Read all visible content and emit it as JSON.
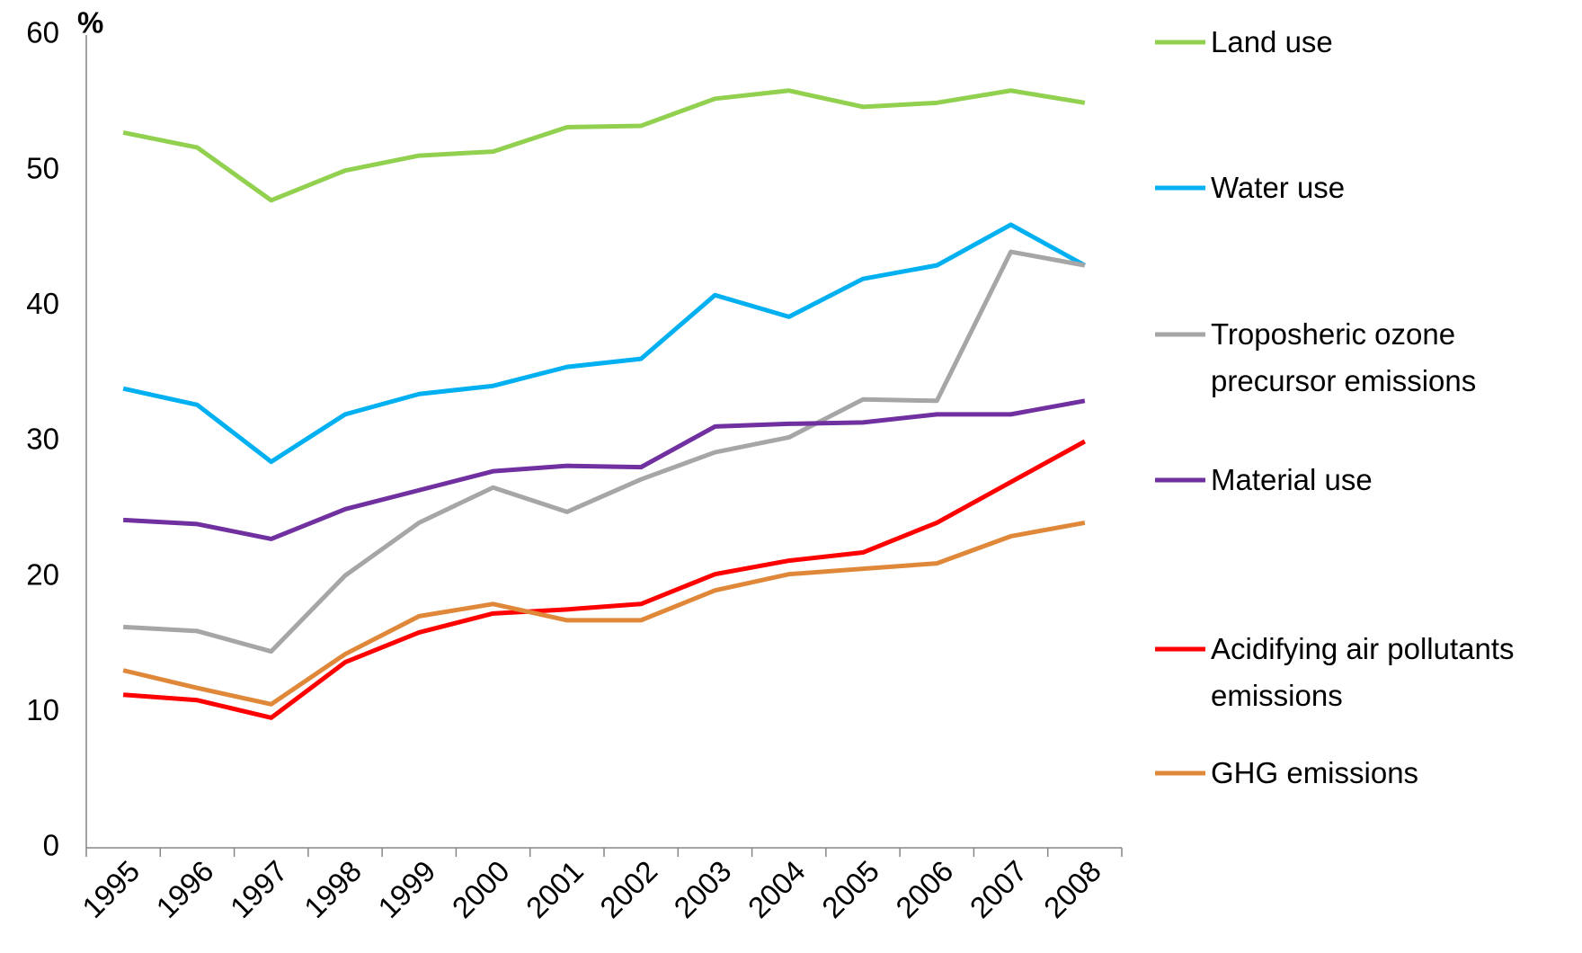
{
  "chart_data": {
    "type": "line",
    "y_unit_label": "%",
    "categories": [
      "1995",
      "1996",
      "1997",
      "1998",
      "1999",
      "2000",
      "2001",
      "2002",
      "2003",
      "2004",
      "2005",
      "2006",
      "2007",
      "2008"
    ],
    "ylim": [
      0,
      60
    ],
    "yticks": [
      0,
      10,
      20,
      30,
      40,
      50,
      60
    ],
    "grid": false,
    "legend": "right",
    "series": [
      {
        "name": "Land use",
        "color": "#92d050",
        "values": [
          52.8,
          51.7,
          47.8,
          50.0,
          51.1,
          51.4,
          53.2,
          53.3,
          55.3,
          55.9,
          54.7,
          55.0,
          55.9,
          55.0
        ]
      },
      {
        "name": "Water use",
        "color": "#00b0f0",
        "values": [
          33.9,
          32.7,
          28.5,
          32.0,
          33.5,
          34.1,
          35.5,
          36.1,
          40.8,
          39.2,
          42.0,
          43.0,
          46.0,
          43.0
        ]
      },
      {
        "name": "Troposheric ozone precursor emissions",
        "color": "#a6a6a6",
        "values": [
          16.3,
          16.0,
          14.5,
          20.1,
          24.0,
          26.6,
          24.8,
          27.2,
          29.2,
          30.3,
          33.1,
          33.0,
          44.0,
          43.0
        ]
      },
      {
        "name": "Material use",
        "color": "#7030a0",
        "values": [
          24.2,
          23.9,
          22.8,
          25.0,
          26.4,
          27.8,
          28.2,
          28.1,
          31.1,
          31.3,
          31.4,
          32.0,
          32.0,
          33.0
        ]
      },
      {
        "name": "Acidifying air pollutants emissions",
        "color": "#ff0000",
        "values": [
          11.3,
          10.9,
          9.6,
          13.7,
          15.9,
          17.3,
          17.6,
          18.0,
          20.2,
          21.2,
          21.8,
          24.0,
          27.0,
          30.0
        ]
      },
      {
        "name": "GHG emissions",
        "color": "#e0883a",
        "values": [
          13.1,
          11.8,
          10.6,
          14.3,
          17.1,
          18.0,
          16.8,
          16.8,
          19.0,
          20.2,
          20.6,
          21.0,
          23.0,
          24.0
        ]
      }
    ]
  }
}
